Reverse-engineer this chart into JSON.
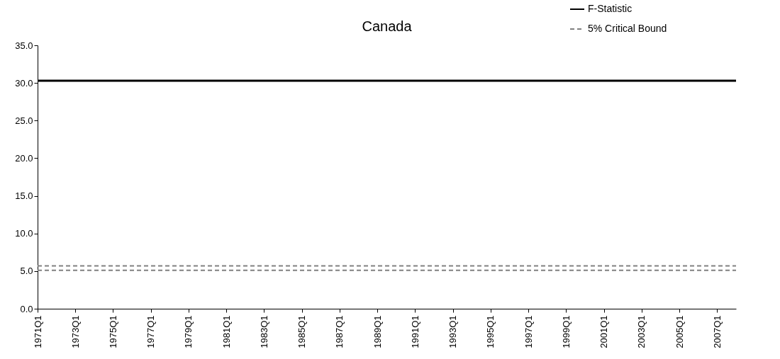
{
  "chart_data": {
    "type": "line",
    "title": "Canada",
    "categories": [
      "1971Q1",
      null,
      "1973Q1",
      null,
      "1975Q1",
      null,
      "1977Q1",
      null,
      "1979Q1",
      null,
      "1981Q1",
      null,
      "1983Q1",
      null,
      "1985Q1",
      null,
      "1987Q1",
      null,
      "1989Q1",
      null,
      "1991Q1",
      null,
      "1993Q1",
      null,
      "1995Q1",
      null,
      "1997Q1",
      null,
      "1999Q1",
      null,
      "2001Q1",
      null,
      "2003Q1",
      null,
      "2005Q1",
      null,
      "2007Q1",
      null
    ],
    "series": [
      {
        "name": "F-Statistic",
        "color": "#000000",
        "line_style": "solid",
        "values": [
          30.3,
          30.3,
          30.3,
          30.3,
          30.3,
          30.3,
          30.3,
          30.3,
          30.3,
          30.3,
          30.3,
          30.3,
          30.3,
          30.3,
          30.3,
          30.3,
          30.3,
          30.3,
          30.3,
          30.3,
          30.3,
          30.3,
          30.3,
          30.3,
          30.3,
          30.3,
          30.3,
          30.3,
          30.3,
          30.3,
          30.3,
          30.3,
          30.3,
          30.3,
          30.3,
          30.3,
          30.3,
          30.3
        ]
      },
      {
        "name": "5% Critical Bound",
        "color": "#808080",
        "line_style": "dashed",
        "values": [
          5.7,
          5.7,
          5.7,
          5.7,
          5.7,
          5.7,
          5.7,
          5.7,
          5.7,
          5.7,
          5.7,
          5.7,
          5.7,
          5.7,
          5.7,
          5.7,
          5.7,
          5.7,
          5.7,
          5.7,
          5.7,
          5.7,
          5.7,
          5.7,
          5.7,
          5.7,
          5.7,
          5.7,
          5.7,
          5.7,
          5.7,
          5.7,
          5.7,
          5.7,
          5.7,
          5.7,
          5.7,
          5.7
        ]
      },
      {
        "color": "#808080",
        "line_style": "dashed",
        "values": [
          5.1,
          5.1,
          5.1,
          5.1,
          5.1,
          5.1,
          5.1,
          5.1,
          5.1,
          5.1,
          5.1,
          5.1,
          5.1,
          5.1,
          5.1,
          5.1,
          5.1,
          5.1,
          5.1,
          5.1,
          5.1,
          5.1,
          5.1,
          5.1,
          5.1,
          5.1,
          5.1,
          5.1,
          5.1,
          5.1,
          5.1,
          5.1,
          5.1,
          5.1,
          5.1,
          5.1,
          5.1,
          5.1
        ]
      }
    ],
    "ylim": [
      0,
      35
    ],
    "yticks": [
      {
        "value": 0,
        "label": "0.0"
      },
      {
        "value": 5,
        "label": "5.0"
      },
      {
        "value": 10,
        "label": "10.0"
      },
      {
        "value": 15,
        "label": "15.0"
      },
      {
        "value": 20,
        "label": "20.0"
      },
      {
        "value": 25,
        "label": "25.0"
      },
      {
        "value": 30,
        "label": "30.0"
      },
      {
        "value": 35,
        "label": "35.0"
      }
    ],
    "grid": false,
    "legend": "top right",
    "marker": "none"
  }
}
